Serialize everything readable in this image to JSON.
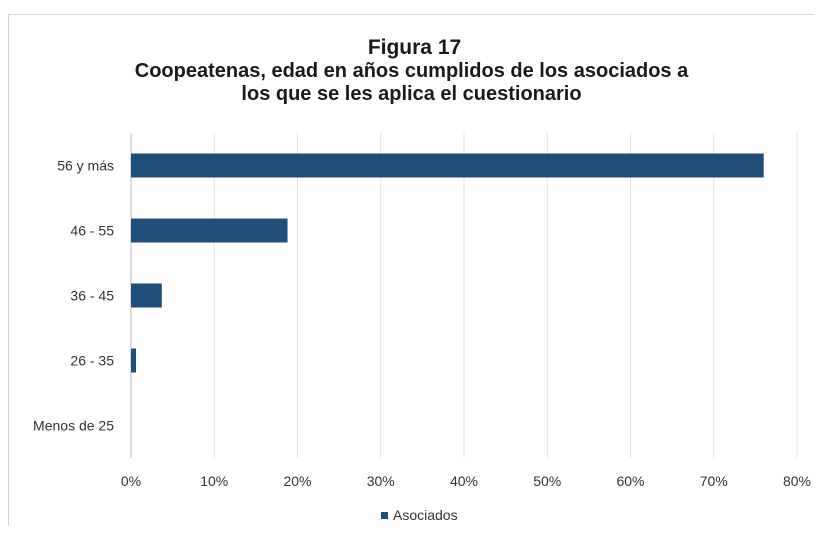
{
  "chart_data": {
    "type": "bar",
    "orientation": "horizontal",
    "title": "Figura 17",
    "subtitle": "Coopeatenas, edad en años cumplidos de los asociados a\nlos que se les aplica el cuestionario",
    "subtitle_lines": [
      "Coopeatenas, edad en años cumplidos de los asociados a",
      "los que se les aplica el cuestionario"
    ],
    "categories": [
      "56 y más",
      "46 - 55",
      "36 - 45",
      "26 - 35",
      "Menos de 25"
    ],
    "series": [
      {
        "name": "Asociados",
        "values": [
          0.76,
          0.188,
          0.037,
          0.006,
          0.0
        ],
        "color": "#1f4e79"
      }
    ],
    "xlim": [
      0,
      0.8
    ],
    "x_ticks": [
      0,
      0.1,
      0.2,
      0.3,
      0.4,
      0.5,
      0.6,
      0.7,
      0.8
    ],
    "x_tick_labels": [
      "0%",
      "10%",
      "20%",
      "30%",
      "40%",
      "50%",
      "60%",
      "70%",
      "80%"
    ],
    "xlabel": "",
    "ylabel": "",
    "grid": "vertical",
    "legend": "bottom"
  },
  "colors": {
    "bar": "#1f4e79",
    "grid": "#e3e3e3",
    "axis": "#bdbdbd"
  }
}
